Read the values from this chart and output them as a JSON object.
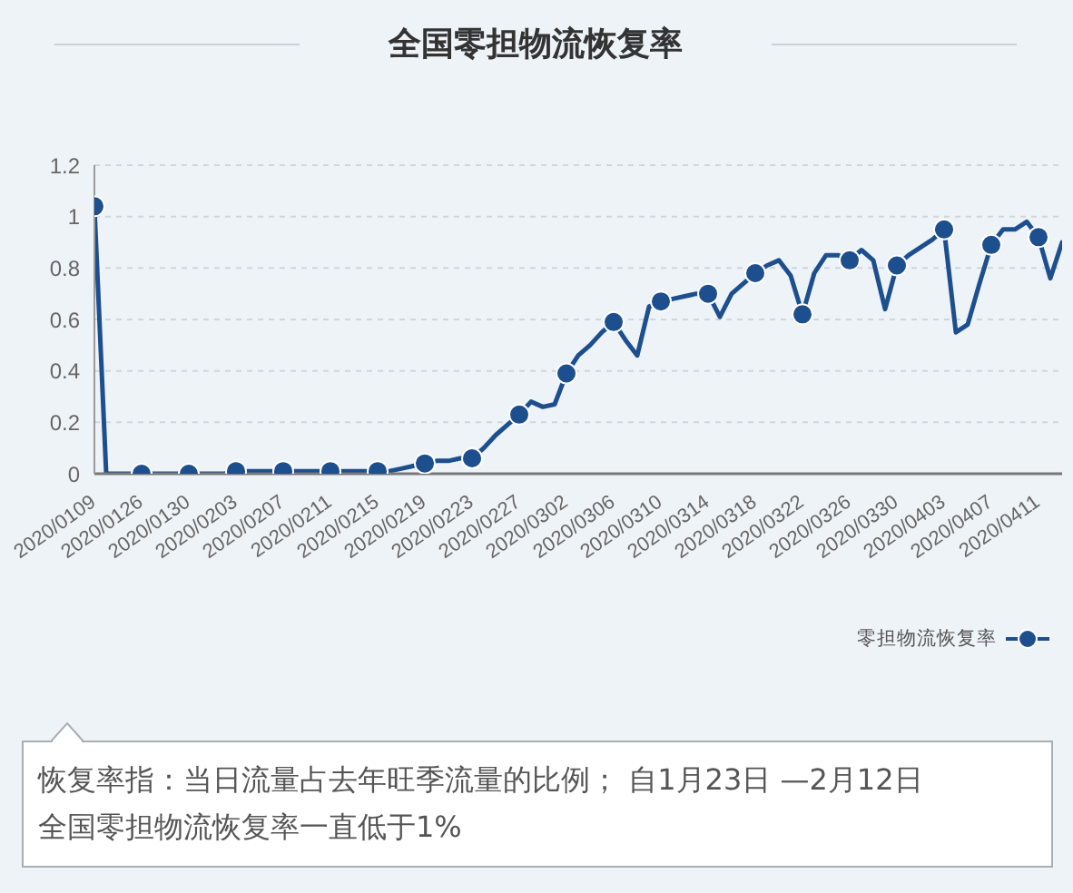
{
  "chart_data": {
    "type": "line",
    "title": "全国零担物流恢复率",
    "categories": [
      "2020/0109",
      null,
      null,
      null,
      "2020/0126",
      null,
      null,
      null,
      "2020/0130",
      null,
      null,
      null,
      "2020/0203",
      null,
      null,
      null,
      "2020/0207",
      null,
      null,
      null,
      "2020/0211",
      null,
      null,
      null,
      "2020/0215",
      null,
      null,
      null,
      "2020/0219",
      null,
      null,
      null,
      "2020/0223",
      null,
      null,
      null,
      "2020/0227",
      null,
      null,
      null,
      "2020/0302",
      null,
      null,
      null,
      "2020/0306",
      null,
      null,
      null,
      "2020/0310",
      null,
      null,
      null,
      "2020/0314",
      null,
      null,
      null,
      "2020/0318",
      null,
      null,
      null,
      "2020/0322",
      null,
      null,
      null,
      "2020/0326",
      null,
      null,
      null,
      "2020/0330",
      null,
      null,
      null,
      "2020/0403",
      null,
      null,
      null,
      "2020/0407",
      null,
      null,
      null,
      "2020/0411",
      null,
      null
    ],
    "series": [
      {
        "name": "零担物流恢复率",
        "color": "#1d4f8f",
        "values": [
          1.04,
          0,
          0,
          0,
          0,
          0,
          0,
          0,
          0,
          0,
          0,
          0,
          0.01,
          0.01,
          0.01,
          0.01,
          0.01,
          0.01,
          0.01,
          0.01,
          0.01,
          0.01,
          0.01,
          0.01,
          0.01,
          0.01,
          0.02,
          0.03,
          0.04,
          0.05,
          0.05,
          0.06,
          0.06,
          0.1,
          0.15,
          0.19,
          0.23,
          0.28,
          0.26,
          0.27,
          0.39,
          0.46,
          0.5,
          0.55,
          0.59,
          0.52,
          0.46,
          0.65,
          0.67,
          0.68,
          0.69,
          0.7,
          0.7,
          0.61,
          0.7,
          0.74,
          0.78,
          0.81,
          0.83,
          0.77,
          0.62,
          0.78,
          0.85,
          0.85,
          0.83,
          0.87,
          0.83,
          0.64,
          0.81,
          0.85,
          0.88,
          0.91,
          0.95,
          0.55,
          0.58,
          0.74,
          0.89,
          0.95,
          0.95,
          0.98,
          0.92,
          0.76,
          0.9
        ]
      },
      {
        "type": "scatter",
        "color": "#1d4f8f",
        "marker": "circle",
        "values": [
          1.04,
          null,
          null,
          null,
          0,
          null,
          null,
          null,
          0,
          null,
          null,
          null,
          0.01,
          null,
          null,
          null,
          0.01,
          null,
          null,
          null,
          0.01,
          null,
          null,
          null,
          0.01,
          null,
          null,
          null,
          0.04,
          null,
          null,
          null,
          0.06,
          null,
          null,
          null,
          0.23,
          null,
          null,
          null,
          0.39,
          null,
          null,
          null,
          0.59,
          null,
          null,
          null,
          0.67,
          null,
          null,
          null,
          0.7,
          null,
          null,
          null,
          0.78,
          null,
          null,
          null,
          0.62,
          null,
          null,
          null,
          0.83,
          null,
          null,
          null,
          0.81,
          null,
          null,
          null,
          0.95,
          null,
          null,
          null,
          0.89,
          null,
          null,
          null,
          0.92,
          null,
          null
        ]
      }
    ],
    "ylim": [
      0,
      1.2
    ],
    "yticks": [
      0,
      0.2,
      0.4,
      0.6,
      0.8,
      1,
      1.2
    ],
    "grid": "y",
    "legend": "bottom right",
    "annotations": [
      "恢复率指：当日流量占去年旺季流量的比例； 自1月23日 —2月12日全国零担物流恢复率一直低于1%"
    ]
  }
}
